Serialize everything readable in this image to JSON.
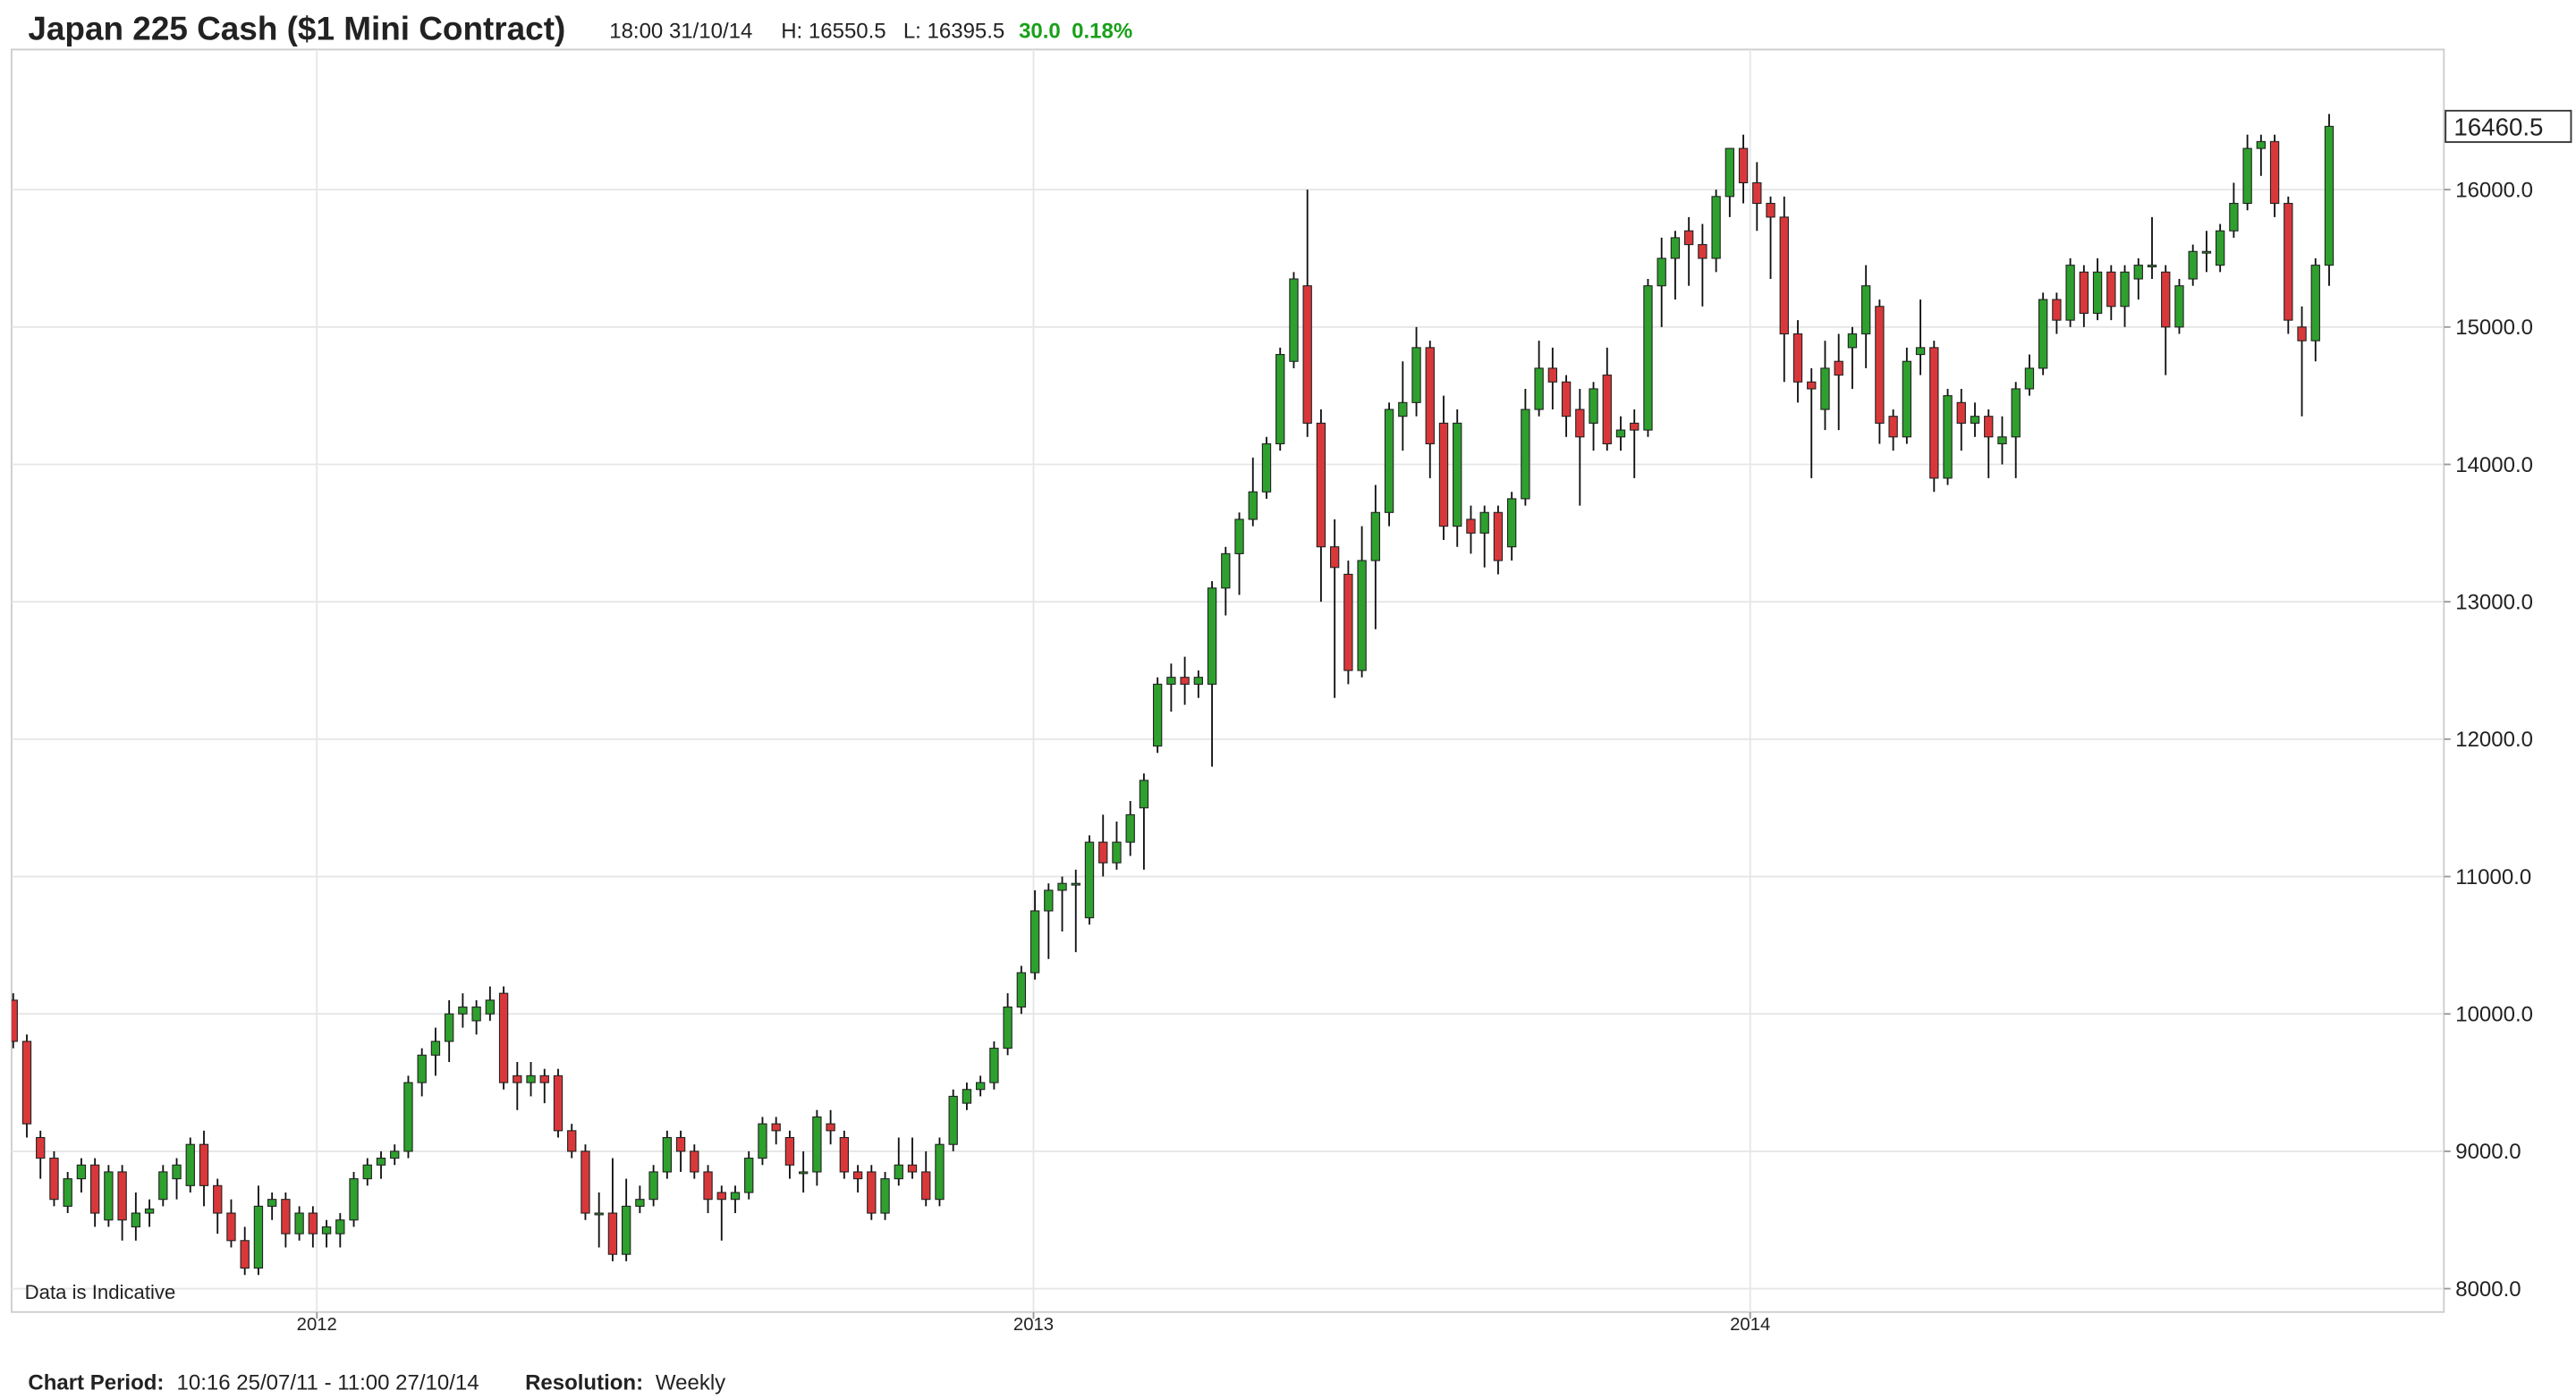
{
  "header": {
    "title": "Japan 225 Cash ($1 Mini Contract)",
    "time": "18:00 31/10/14",
    "high": "H: 16550.5",
    "low": "L: 16395.5",
    "change": "30.0",
    "change_percent": "0.18%"
  },
  "chart_data": {
    "type": "candlestick",
    "annotation": "Data is Indicative",
    "colors": {
      "up": "#2ea02e",
      "down": "#d9383a",
      "wick": "#111111"
    },
    "ylim": [
      7830,
      17020
    ],
    "yticks": [
      {
        "value": 8000,
        "label": "8000.0"
      },
      {
        "value": 9000,
        "label": "9000.0"
      },
      {
        "value": 10000,
        "label": "10000.0"
      },
      {
        "value": 11000,
        "label": "11000.0"
      },
      {
        "value": 12000,
        "label": "12000.0"
      },
      {
        "value": 13000,
        "label": "13000.0"
      },
      {
        "value": 14000,
        "label": "14000.0"
      },
      {
        "value": 15000,
        "label": "15000.0"
      },
      {
        "value": 16000,
        "label": "16000.0"
      }
    ],
    "xlim": [
      2011.574,
      2014.968
    ],
    "xticks": [
      2012,
      2013,
      2014
    ],
    "grid": true,
    "open": [
      10100,
      9800,
      9100,
      8950,
      8600,
      8800,
      8900,
      8500,
      8850,
      8450,
      8550,
      8650,
      8800,
      8750,
      9050,
      8750,
      8550,
      8350,
      8150,
      8600,
      8650,
      8400,
      8550,
      8400,
      8400,
      8500,
      8800,
      8900,
      8950,
      9000,
      9500,
      9700,
      9800,
      10000,
      9950,
      10000,
      10150,
      9550,
      9500,
      9550,
      9550,
      9150,
      9000,
      8550,
      8550,
      8250,
      8600,
      8650,
      8850,
      9100,
      9000,
      8850,
      8700,
      8650,
      8700,
      8950,
      9200,
      9100,
      8850,
      8850,
      9200,
      9100,
      8850,
      8850,
      8550,
      8800,
      8900,
      8850,
      8650,
      9050,
      9350,
      9450,
      9500,
      9750,
      10050,
      10300,
      10750,
      10900,
      10950,
      10700,
      11250,
      11100,
      11250,
      11500,
      11950,
      12400,
      12450,
      12400,
      12400,
      13100,
      13350,
      13600,
      13800,
      14150,
      14750,
      15300,
      14300,
      13400,
      13200,
      12500,
      13300,
      13650,
      14350,
      14450,
      14850,
      14300,
      13550,
      13600,
      13500,
      13650,
      13400,
      13750,
      14400,
      14700,
      14600,
      14400,
      14300,
      14650,
      14200,
      14300,
      14250,
      15300,
      15500,
      15700,
      15600,
      15500,
      15950,
      16300,
      16050,
      15900,
      15800,
      14950,
      14600,
      14400,
      14750,
      14850,
      14950,
      15150,
      14350,
      14200,
      14800,
      14850,
      13900,
      14450,
      14300,
      14350,
      14150,
      14200,
      14550,
      14700,
      15200,
      15050,
      15400,
      15100,
      15400,
      15150,
      15350,
      15450,
      15400,
      15000,
      15350,
      15550,
      15450,
      15700,
      15900,
      16300,
      16350,
      15900,
      15000,
      14900,
      15450
    ],
    "high": [
      10150,
      9850,
      9150,
      9000,
      8850,
      8950,
      8950,
      8900,
      8900,
      8700,
      8650,
      8900,
      8950,
      9100,
      9150,
      8800,
      8650,
      8450,
      8750,
      8700,
      8700,
      8600,
      8600,
      8500,
      8550,
      8850,
      8950,
      9000,
      9050,
      9550,
      9750,
      9900,
      10100,
      10150,
      10100,
      10200,
      10200,
      9650,
      9650,
      9600,
      9600,
      9200,
      9050,
      8700,
      8950,
      8800,
      8750,
      8900,
      9150,
      9150,
      9050,
      8900,
      8750,
      8750,
      9000,
      9250,
      9250,
      9150,
      9000,
      9300,
      9300,
      9150,
      8900,
      8900,
      8850,
      9100,
      9100,
      9000,
      9100,
      9450,
      9500,
      9550,
      9800,
      10150,
      10350,
      10900,
      10950,
      11000,
      11050,
      11300,
      11450,
      11400,
      11550,
      11750,
      12450,
      12550,
      12600,
      12500,
      13150,
      13400,
      13650,
      14050,
      14200,
      14850,
      15400,
      16000,
      14400,
      13600,
      13300,
      13550,
      13850,
      14450,
      14750,
      15000,
      14900,
      14500,
      14400,
      13700,
      13700,
      13700,
      13800,
      14550,
      14900,
      14850,
      14650,
      14550,
      14600,
      14850,
      14350,
      14400,
      15350,
      15650,
      15700,
      15800,
      15750,
      16000,
      16300,
      16400,
      16200,
      15950,
      15950,
      15050,
      14700,
      14900,
      14950,
      15000,
      15450,
      15200,
      14400,
      14850,
      15200,
      14900,
      14550,
      14550,
      14450,
      14400,
      14350,
      14600,
      14800,
      15250,
      15250,
      15500,
      15450,
      15500,
      15450,
      15450,
      15500,
      15800,
      15450,
      15350,
      15600,
      15700,
      15750,
      16050,
      16400,
      16400,
      16400,
      15950,
      15150,
      15500,
      16550.5
    ],
    "low": [
      9750,
      9100,
      8800,
      8600,
      8550,
      8700,
      8450,
      8450,
      8350,
      8350,
      8450,
      8600,
      8650,
      8700,
      8600,
      8400,
      8300,
      8100,
      8100,
      8500,
      8300,
      8350,
      8300,
      8300,
      8300,
      8450,
      8750,
      8800,
      8900,
      8950,
      9400,
      9550,
      9650,
      9900,
      9850,
      9950,
      9450,
      9300,
      9400,
      9350,
      9100,
      8950,
      8500,
      8300,
      8200,
      8200,
      8550,
      8600,
      8800,
      8850,
      8800,
      8550,
      8350,
      8550,
      8650,
      8900,
      9050,
      8800,
      8700,
      8750,
      9050,
      8800,
      8700,
      8500,
      8500,
      8750,
      8800,
      8600,
      8600,
      9000,
      9300,
      9400,
      9450,
      9700,
      10000,
      10250,
      10400,
      10600,
      10450,
      10650,
      11000,
      11050,
      11150,
      11050,
      11900,
      12200,
      12250,
      12300,
      11800,
      12900,
      13050,
      13550,
      13750,
      14100,
      14700,
      14200,
      13000,
      12300,
      12400,
      12450,
      12800,
      13550,
      14100,
      14350,
      13900,
      13450,
      13400,
      13350,
      13250,
      13200,
      13300,
      13700,
      14350,
      14400,
      14200,
      13700,
      14100,
      14100,
      14100,
      13900,
      14200,
      15000,
      15200,
      15300,
      15150,
      15400,
      15800,
      15900,
      15700,
      15350,
      14600,
      14450,
      13900,
      14250,
      14250,
      14550,
      14700,
      14150,
      14100,
      14150,
      14650,
      13800,
      13850,
      14100,
      14200,
      13900,
      14000,
      13900,
      14500,
      14650,
      14950,
      15000,
      15000,
      15050,
      15050,
      15000,
      15200,
      15350,
      14650,
      14950,
      15300,
      15400,
      15400,
      15650,
      15850,
      16100,
      15800,
      14950,
      14350,
      14750,
      15300
    ],
    "close": [
      9800,
      9200,
      8950,
      8650,
      8800,
      8900,
      8550,
      8850,
      8500,
      8550,
      8580,
      8850,
      8900,
      9050,
      8750,
      8550,
      8350,
      8150,
      8600,
      8650,
      8400,
      8550,
      8400,
      8450,
      8500,
      8800,
      8900,
      8950,
      9000,
      9500,
      9700,
      9800,
      10000,
      10050,
      10050,
      10100,
      9500,
      9500,
      9550,
      9500,
      9150,
      9000,
      8550,
      8550,
      8250,
      8600,
      8650,
      8850,
      9100,
      9000,
      8850,
      8650,
      8650,
      8700,
      8950,
      9200,
      9150,
      8900,
      8850,
      9250,
      9150,
      8850,
      8800,
      8550,
      8800,
      8900,
      8850,
      8650,
      9050,
      9400,
      9450,
      9500,
      9750,
      10050,
      10300,
      10750,
      10900,
      10950,
      10950,
      11250,
      11100,
      11250,
      11450,
      11700,
      12400,
      12450,
      12400,
      12450,
      13100,
      13350,
      13600,
      13800,
      14150,
      14800,
      15350,
      14300,
      13400,
      13250,
      12500,
      13300,
      13650,
      14400,
      14450,
      14850,
      14150,
      13550,
      14300,
      13500,
      13650,
      13300,
      13750,
      14400,
      14700,
      14600,
      14350,
      14200,
      14550,
      14150,
      14250,
      14250,
      15300,
      15500,
      15650,
      15600,
      15500,
      15950,
      16300,
      16050,
      15900,
      15800,
      14950,
      14600,
      14550,
      14700,
      14650,
      14950,
      15300,
      14300,
      14200,
      14750,
      14850,
      13900,
      14500,
      14300,
      14350,
      14200,
      14200,
      14550,
      14700,
      15200,
      15050,
      15450,
      15100,
      15400,
      15150,
      15400,
      15450,
      15450,
      15000,
      15300,
      15550,
      15550,
      15700,
      15900,
      16300,
      16350,
      15900,
      15050,
      14900,
      15450,
      16460.5
    ]
  },
  "footer": {
    "period_label": "Chart Period:",
    "period": "10:16 25/07/11 - 11:00 27/10/14",
    "resolution_label": "Resolution:",
    "resolution": "Weekly"
  }
}
